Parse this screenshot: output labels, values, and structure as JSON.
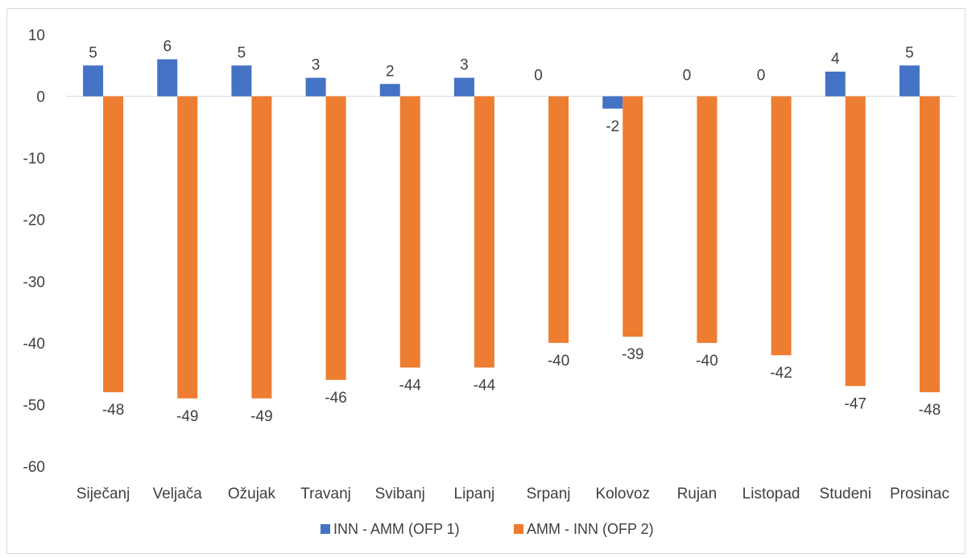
{
  "chart_data": {
    "type": "bar",
    "title": "",
    "xlabel": "",
    "ylabel": "",
    "categories": [
      "Siječanj",
      "Veljača",
      "Ožujak",
      "Travanj",
      "Svibanj",
      "Lipanj",
      "Srpanj",
      "Kolovoz",
      "Rujan",
      "Listopad",
      "Studeni",
      "Prosinac"
    ],
    "series": [
      {
        "name": "INN - AMM (OFP 1)",
        "color": "#4472c4",
        "values": [
          5,
          6,
          5,
          3,
          2,
          3,
          0,
          -2,
          0,
          0,
          4,
          5
        ]
      },
      {
        "name": "AMM - INN (OFP 2)",
        "color": "#ed7d31",
        "values": [
          -48,
          -49,
          -49,
          -46,
          -44,
          -44,
          -40,
          -39,
          -40,
          -42,
          -47,
          -48
        ]
      }
    ],
    "ylim": [
      -60,
      10
    ],
    "yticks": [
      10,
      0,
      -10,
      -20,
      -30,
      -40,
      -50,
      -60
    ],
    "grid": false,
    "legend_position": "bottom",
    "data_labels": true
  }
}
